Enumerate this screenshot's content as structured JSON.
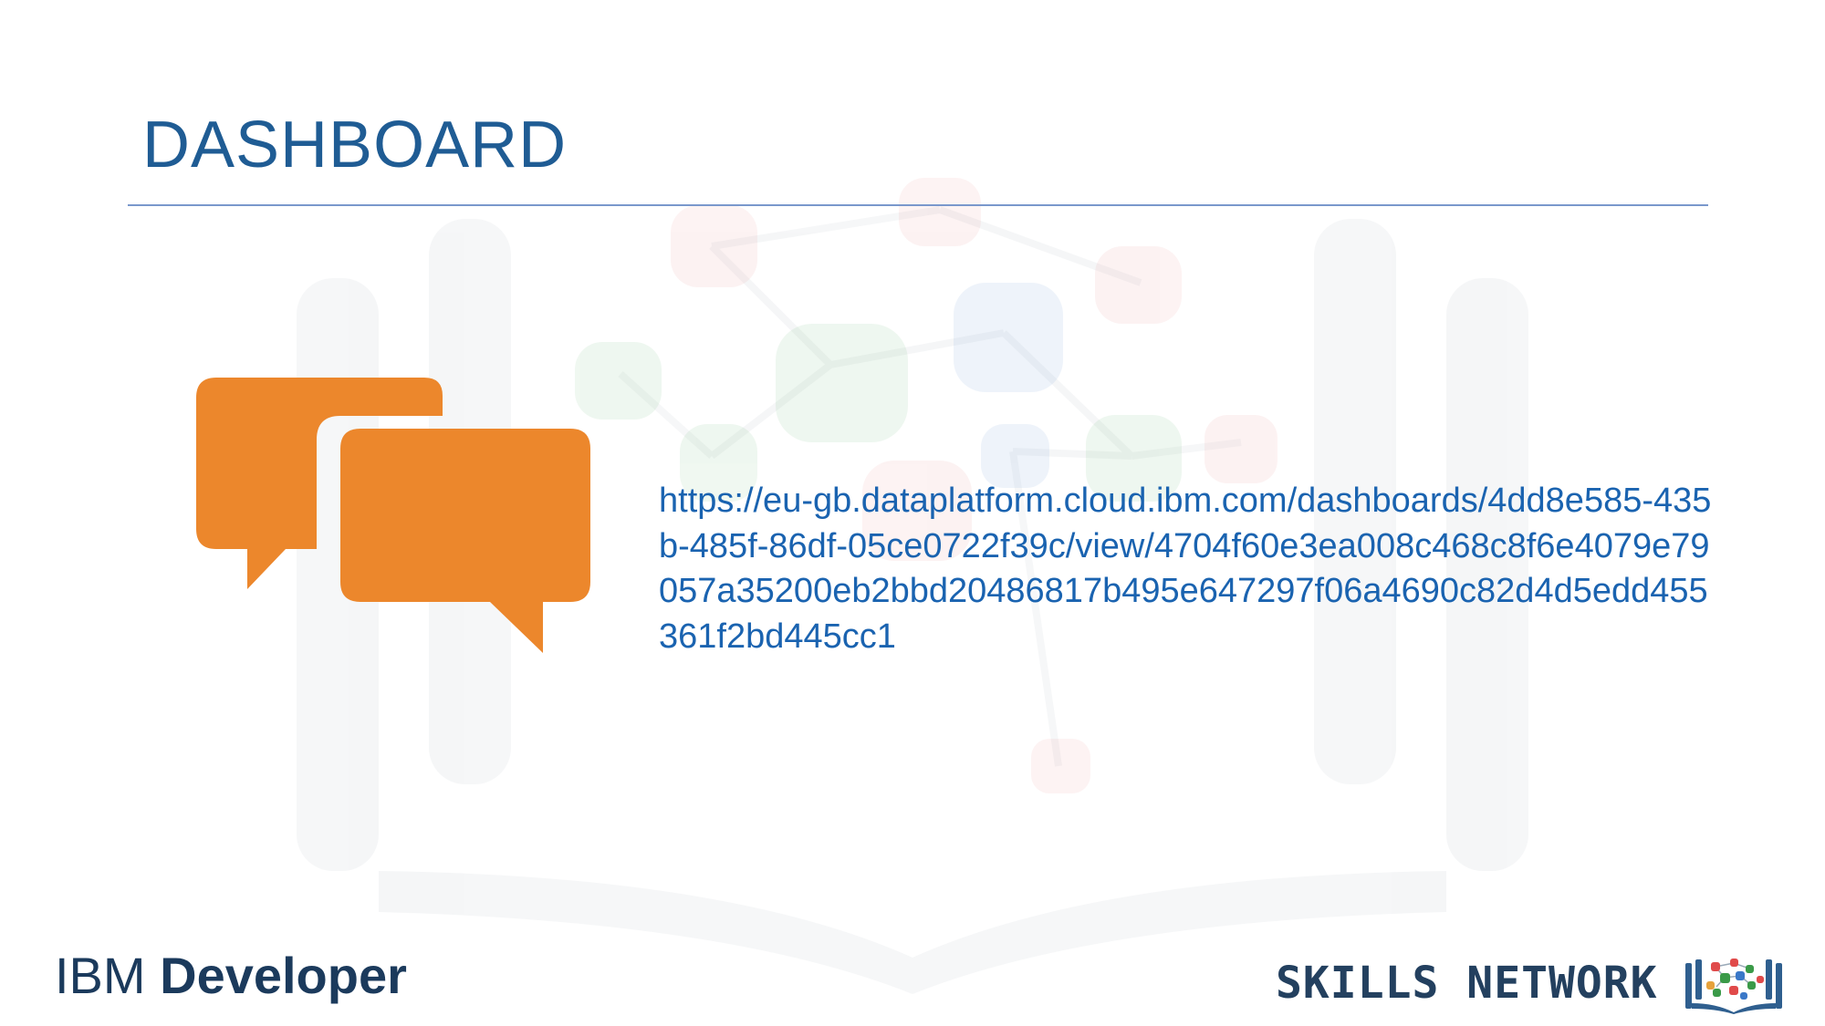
{
  "slide": {
    "title": "DASHBOARD",
    "link": "https://eu-gb.dataplatform.cloud.ibm.com/dashboards/4dd8e585-435b-485f-86df-05ce0722f39c/view/4704f60e3ea008c468c8f6e4079e79057a35200eb2bbd20486817b495e647297f06a4690c82d4d5edd455361f2bd445cc1"
  },
  "footer": {
    "left_logo_light": "IBM ",
    "left_logo_bold": "Developer",
    "right_logo_text": "SKILLS NETWORK"
  },
  "colors": {
    "title": "#1f5c94",
    "rule": "#7a98cc",
    "chat_icon": "#ec872c",
    "link": "#1a63b0"
  },
  "icons": {
    "main": "chat-bubbles-icon",
    "footer_right": "open-book-network-icon"
  }
}
